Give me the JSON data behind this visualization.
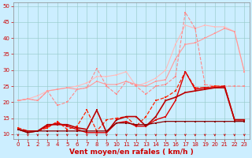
{
  "xlabel": "Vent moyen/en rafales ( km/h )",
  "background_color": "#cceeff",
  "grid_color": "#aadddd",
  "x": [
    0,
    1,
    2,
    3,
    4,
    5,
    6,
    7,
    8,
    9,
    10,
    11,
    12,
    13,
    14,
    15,
    16,
    17,
    18,
    19,
    20,
    21,
    22,
    23
  ],
  "lines": [
    {
      "color": "#ffaaaa",
      "linewidth": 0.8,
      "marker": "s",
      "markersize": 1.8,
      "linestyle": "--",
      "values": [
        20.5,
        21.0,
        null,
        null,
        null,
        null,
        null,
        null,
        null,
        null,
        null,
        null,
        null,
        null,
        null,
        null,
        null,
        null,
        null,
        null,
        null,
        null,
        null,
        null
      ]
    },
    {
      "color": "#ffbbbb",
      "linewidth": 0.8,
      "marker": "s",
      "markersize": 1.8,
      "linestyle": "-",
      "values": [
        20.5,
        21.0,
        22.0,
        23.5,
        24.0,
        24.5,
        25.0,
        26.0,
        28.0,
        28.0,
        28.5,
        29.5,
        25.0,
        26.0,
        27.5,
        30.0,
        38.0,
        44.0,
        43.0,
        44.0,
        43.5,
        43.5,
        42.0,
        29.5
      ]
    },
    {
      "color": "#ff8888",
      "linewidth": 0.8,
      "marker": "s",
      "markersize": 1.8,
      "linestyle": "--",
      "values": [
        20.5,
        21.0,
        20.5,
        23.5,
        19.0,
        20.0,
        24.0,
        24.5,
        30.5,
        25.0,
        22.5,
        26.5,
        25.0,
        22.5,
        25.0,
        25.5,
        28.0,
        48.0,
        43.0,
        25.5,
        25.0,
        25.0,
        25.0,
        25.0
      ]
    },
    {
      "color": "#ff9999",
      "linewidth": 0.8,
      "marker": "s",
      "markersize": 1.8,
      "linestyle": "-",
      "values": [
        20.5,
        21.0,
        20.5,
        23.5,
        24.0,
        24.5,
        24.0,
        24.5,
        26.5,
        25.5,
        25.5,
        26.5,
        25.5,
        25.0,
        26.5,
        27.0,
        33.5,
        38.0,
        38.5,
        40.0,
        41.5,
        43.0,
        42.0,
        29.5
      ]
    },
    {
      "color": "#ff2200",
      "linewidth": 0.9,
      "marker": "s",
      "markersize": 1.8,
      "linestyle": "--",
      "values": [
        12.0,
        11.0,
        11.0,
        12.0,
        14.0,
        11.5,
        12.5,
        17.5,
        11.0,
        14.5,
        15.0,
        15.5,
        12.5,
        15.5,
        20.5,
        21.5,
        23.5,
        29.5,
        24.5,
        24.5,
        25.0,
        25.0,
        14.5,
        14.5
      ]
    },
    {
      "color": "#dd0000",
      "linewidth": 1.0,
      "marker": "s",
      "markersize": 1.8,
      "linestyle": "-",
      "values": [
        11.5,
        10.5,
        11.0,
        12.5,
        13.5,
        12.5,
        11.5,
        10.5,
        10.5,
        10.5,
        13.5,
        14.0,
        12.5,
        12.5,
        14.5,
        15.5,
        20.5,
        29.5,
        24.0,
        24.5,
        24.5,
        25.0,
        14.5,
        14.5
      ]
    },
    {
      "color": "#bb0000",
      "linewidth": 1.2,
      "marker": "s",
      "markersize": 1.8,
      "linestyle": "-",
      "values": [
        11.5,
        11.0,
        11.0,
        13.0,
        13.0,
        13.0,
        12.0,
        11.5,
        17.5,
        10.5,
        14.5,
        15.5,
        15.5,
        12.5,
        15.5,
        20.5,
        21.5,
        23.0,
        23.5,
        24.0,
        24.5,
        24.5,
        14.5,
        14.5
      ]
    },
    {
      "color": "#880000",
      "linewidth": 0.9,
      "marker": "s",
      "markersize": 1.6,
      "linestyle": "-",
      "values": [
        11.5,
        10.5,
        11.0,
        11.0,
        11.0,
        11.0,
        11.0,
        11.0,
        11.0,
        11.0,
        13.5,
        13.5,
        13.0,
        13.0,
        13.5,
        14.0,
        14.0,
        14.0,
        14.0,
        14.0,
        14.0,
        14.0,
        14.0,
        14.0
      ]
    }
  ],
  "ylim": [
    8.5,
    51
  ],
  "xlim": [
    -0.5,
    23.5
  ],
  "yticks": [
    10,
    15,
    20,
    25,
    30,
    35,
    40,
    45,
    50
  ],
  "xticks": [
    0,
    1,
    2,
    3,
    4,
    5,
    6,
    7,
    8,
    9,
    10,
    11,
    12,
    13,
    14,
    15,
    16,
    17,
    18,
    19,
    20,
    21,
    22,
    23
  ],
  "xlabel_fontsize": 6.5,
  "tick_fontsize": 5.0,
  "tick_color": "#cc0000"
}
